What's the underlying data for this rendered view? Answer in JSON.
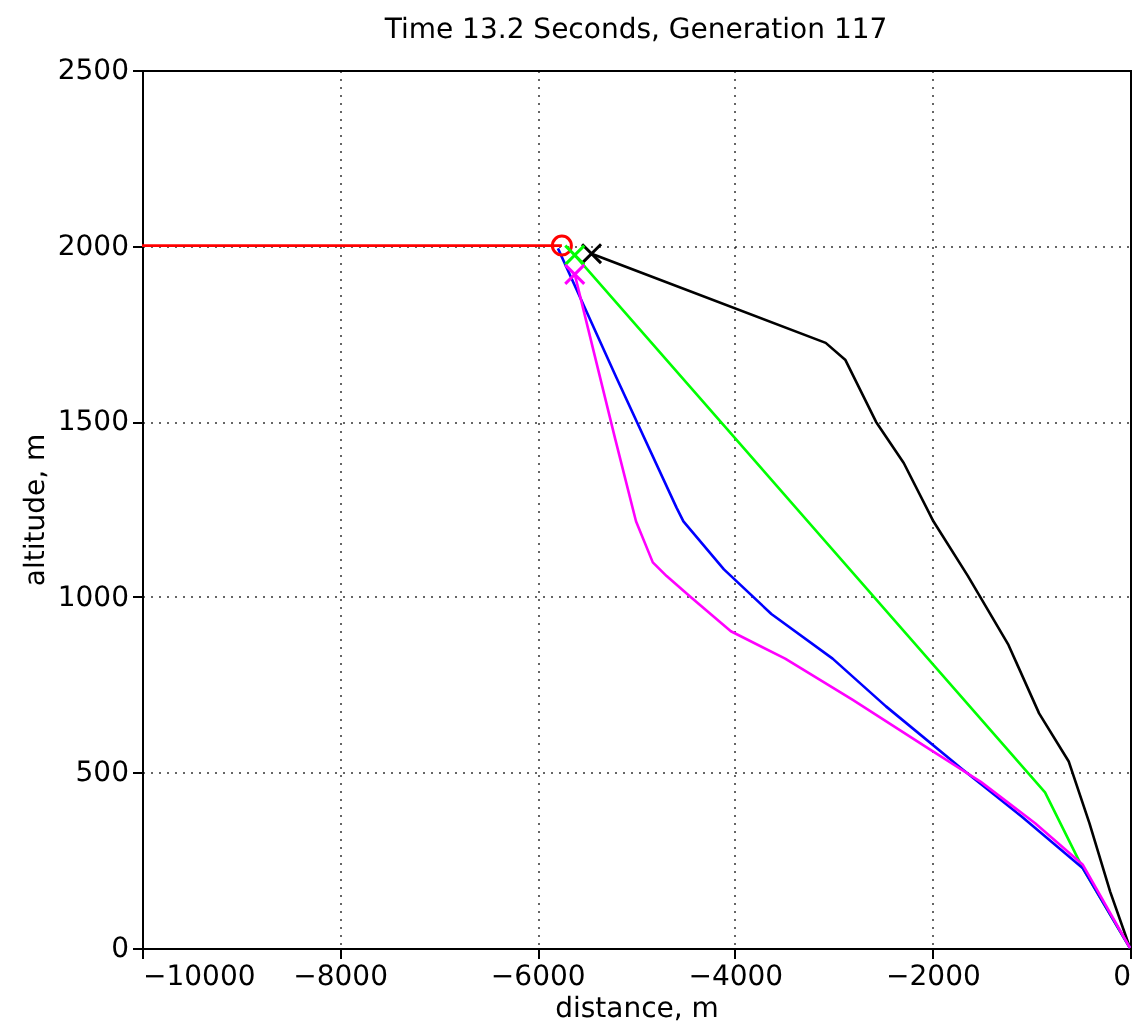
{
  "chart_data": {
    "type": "line",
    "title": "Time 13.2 Seconds, Generation 117",
    "xlabel": "distance, m",
    "ylabel": "altitude, m",
    "xlim": [
      -10000,
      0
    ],
    "xticks": [
      -10000,
      -8000,
      -6000,
      -4000,
      -2000,
      0
    ],
    "ylim": [
      0,
      2500
    ],
    "yticks": [
      0,
      500,
      1000,
      1500,
      2000,
      2500
    ],
    "grid": true,
    "line_style": "solid",
    "series": [
      {
        "color": "#ff0000",
        "x": [
          -10000,
          -5750
        ],
        "values": [
          2000,
          2000
        ]
      },
      {
        "color": "#000000",
        "x": [
          -5450,
          -3080,
          -2880,
          -2570,
          -2290,
          -1990,
          -1640,
          -1230,
          -920,
          -620,
          -410,
          -200,
          0
        ],
        "values": [
          1977,
          1723,
          1674,
          1498,
          1381,
          1215,
          1059,
          863,
          668,
          531,
          355,
          160,
          0
        ]
      },
      {
        "color": "#00ff00",
        "x": [
          -5620,
          -860,
          -480,
          0
        ],
        "values": [
          1973,
          443,
          228,
          0
        ]
      },
      {
        "color": "#0000ff",
        "x": [
          -5790,
          -5200,
          -4590,
          -4520,
          -4110,
          -3630,
          -3010,
          -2470,
          -1710,
          -1100,
          -480,
          0
        ],
        "values": [
          1992,
          1625,
          1254,
          1215,
          1078,
          951,
          824,
          688,
          512,
          375,
          228,
          0
        ]
      },
      {
        "color": "#ff00ff",
        "x": [
          -5620,
          -5210,
          -5000,
          -4830,
          -4690,
          -4450,
          -4040,
          -3490,
          -2810,
          -2050,
          -1510,
          -960,
          -480,
          0
        ],
        "values": [
          1918,
          1449,
          1215,
          1098,
          1059,
          1000,
          902,
          824,
          707,
          570,
          473,
          355,
          238,
          0
        ]
      },
      {
        "type": "scatter",
        "marker": "circle",
        "color": "#ff0000",
        "x": [
          -5750
        ],
        "values": [
          2000
        ]
      },
      {
        "type": "scatter",
        "marker": "cross",
        "color": "#000000",
        "x": [
          -5450
        ],
        "values": [
          1977
        ]
      },
      {
        "type": "scatter",
        "marker": "cross",
        "color": "#00ff00",
        "x": [
          -5620
        ],
        "values": [
          1973
        ]
      },
      {
        "type": "scatter",
        "marker": "cross",
        "color": "#ff00ff",
        "x": [
          -5620
        ],
        "values": [
          1918
        ]
      }
    ]
  }
}
